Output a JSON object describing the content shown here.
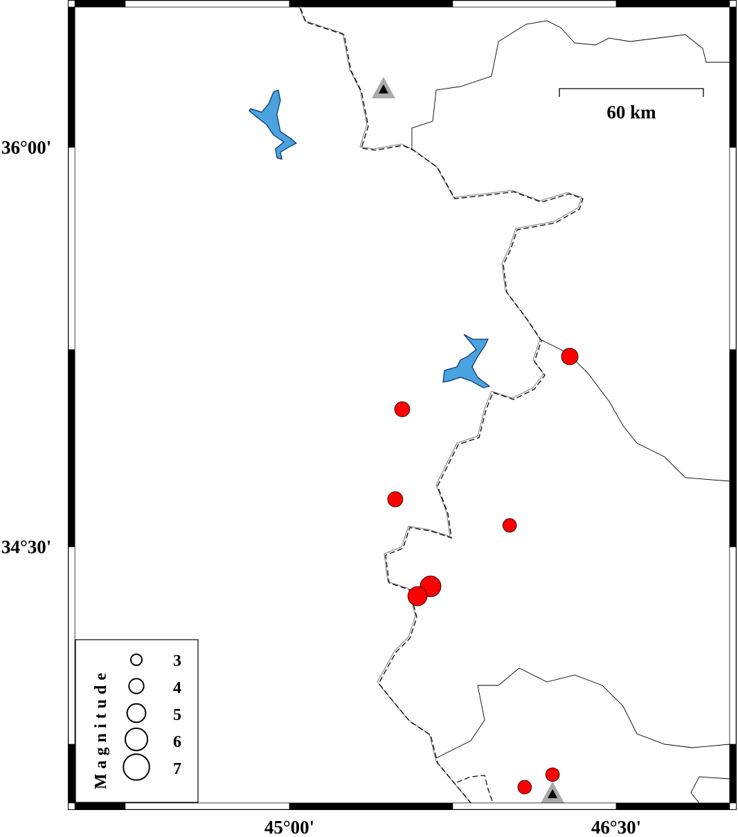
{
  "map": {
    "lat_labels": [
      {
        "value": 36.0,
        "text": "36°00'"
      },
      {
        "value": 34.5,
        "text": "34°30'"
      }
    ],
    "lon_labels": [
      {
        "value": 45.0,
        "text": "45°00'"
      },
      {
        "value": 46.5,
        "text": "46°30'"
      }
    ],
    "extent": {
      "lon": [
        44.72,
        46.53
      ],
      "lat": [
        33.53,
        36.55
      ]
    },
    "scale_bar": {
      "label": "60 km",
      "km": 60
    },
    "colors": {
      "event": "#ff0000",
      "lake": "#4aa3df",
      "station_outer": "#aaaaaa",
      "station_inner": "#000000"
    },
    "events": [
      {
        "lon": 46.287,
        "lat": 35.215,
        "mag": 4.5
      },
      {
        "lon": 45.518,
        "lat": 35.017,
        "mag": 4.1
      },
      {
        "lon": 45.486,
        "lat": 34.679,
        "mag": 4.1
      },
      {
        "lon": 46.011,
        "lat": 34.581,
        "mag": 3.7
      },
      {
        "lon": 45.648,
        "lat": 34.352,
        "mag": 5.6
      },
      {
        "lon": 45.588,
        "lat": 34.315,
        "mag": 5.2
      },
      {
        "lon": 46.08,
        "lat": 33.598,
        "mag": 3.7
      },
      {
        "lon": 46.208,
        "lat": 33.645,
        "mag": 3.7
      }
    ],
    "stations": [
      {
        "lon": 45.432,
        "lat": 36.221
      },
      {
        "lon": 46.208,
        "lat": 33.575
      }
    ]
  },
  "legend": {
    "title": "Magnitude",
    "magnitudes": [
      "3",
      "4",
      "5",
      "6",
      "7"
    ]
  }
}
